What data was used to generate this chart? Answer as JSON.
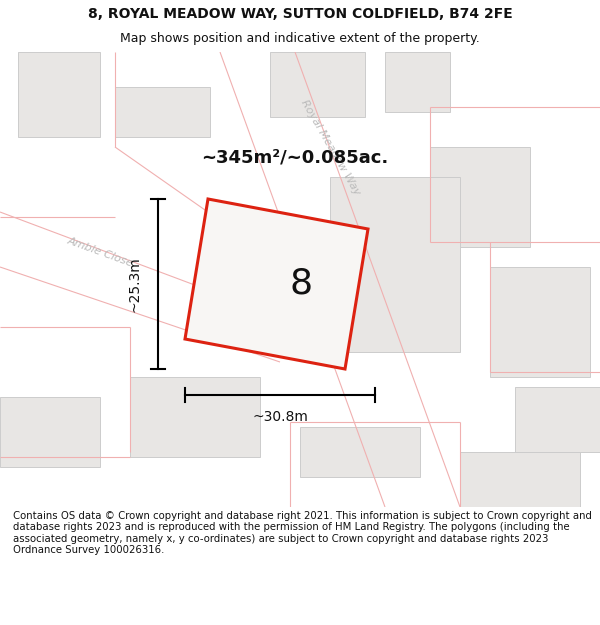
{
  "title_line1": "8, ROYAL MEADOW WAY, SUTTON COLDFIELD, B74 2FE",
  "title_line2": "Map shows position and indicative extent of the property.",
  "footer_text": "Contains OS data © Crown copyright and database right 2021. This information is subject to Crown copyright and database rights 2023 and is reproduced with the permission of HM Land Registry. The polygons (including the associated geometry, namely x, y co-ordinates) are subject to Crown copyright and database rights 2023 Ordnance Survey 100026316.",
  "area_text": "~345m²/~0.085ac.",
  "label_width": "~30.8m",
  "label_height": "~25.3m",
  "plot_number": "8",
  "map_bg": "#ffffff",
  "building_fill": "#e8e6e4",
  "building_edge": "#cccccc",
  "plot_fill": "#f0eeec",
  "plot_stroke": "#dd2211",
  "road_line_color": "#f0b0b0",
  "road_label_color": "#bbbbbb",
  "measure_color": "#111111",
  "text_color": "#111111",
  "title_fontsize": 10,
  "footer_fontsize": 7.3
}
